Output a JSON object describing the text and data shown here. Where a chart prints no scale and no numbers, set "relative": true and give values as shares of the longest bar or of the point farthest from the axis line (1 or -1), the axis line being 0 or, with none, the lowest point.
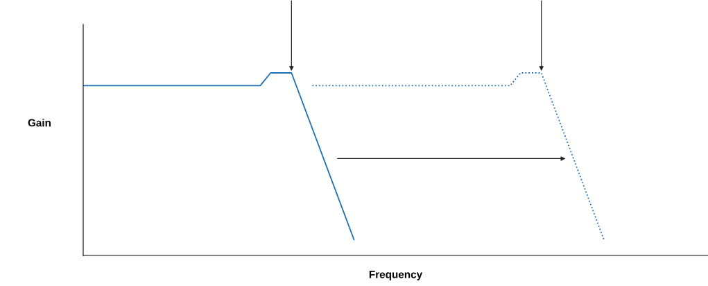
{
  "chart_data": {
    "type": "line",
    "relative": true,
    "xlabel": "Frequency",
    "ylabel": "Gain",
    "legend": false,
    "marker": "none",
    "categories": [
      null,
      null,
      null,
      null,
      null,
      null,
      null,
      null,
      null,
      null,
      null,
      null,
      null,
      null,
      null,
      null,
      null,
      null,
      null,
      null,
      null,
      null,
      null,
      null,
      null,
      null,
      null,
      null,
      null,
      null,
      null,
      null,
      null,
      null,
      null,
      null,
      null,
      null,
      null,
      null,
      null,
      null,
      null,
      null,
      null,
      null,
      null,
      null,
      null,
      null,
      null,
      null,
      null,
      null,
      null,
      null,
      null,
      null,
      null,
      null,
      null
    ],
    "series": [
      {
        "color": "#1f6fb4",
        "line_style": "solid",
        "values": [
          0.93,
          null,
          null,
          null,
          null,
          null,
          null,
          null,
          null,
          null,
          null,
          null,
          null,
          null,
          null,
          null,
          null,
          0.93,
          1,
          null,
          1,
          null,
          null,
          null,
          null,
          null,
          0.087,
          null,
          null,
          null,
          null,
          null,
          null,
          null,
          null,
          null,
          null,
          null,
          null,
          null,
          null,
          null,
          null,
          null,
          null,
          null,
          null,
          null,
          null,
          null,
          null,
          null,
          null,
          null,
          null,
          null,
          null,
          null,
          null,
          null,
          null
        ]
      },
      {
        "color": "#1f6fb4",
        "line_style": "dotted",
        "values": [
          null,
          null,
          null,
          null,
          null,
          null,
          null,
          null,
          null,
          null,
          null,
          null,
          null,
          null,
          null,
          null,
          null,
          null,
          null,
          null,
          null,
          null,
          0.93,
          null,
          null,
          null,
          null,
          null,
          null,
          null,
          null,
          null,
          null,
          null,
          null,
          null,
          null,
          null,
          null,
          null,
          null,
          0.93,
          1,
          null,
          1,
          null,
          null,
          null,
          null,
          null,
          0.087,
          null,
          null,
          null,
          null,
          null,
          null,
          null,
          null,
          null,
          null
        ]
      }
    ]
  }
}
